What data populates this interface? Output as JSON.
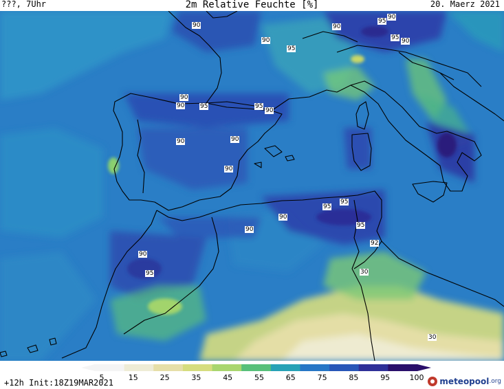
{
  "header": {
    "left": "???, 7Uhr",
    "title": "2m Relative Feuchte [%]",
    "date": "20. Maerz 2021"
  },
  "map_labels": [
    "90",
    "95",
    "90",
    "90",
    "95",
    "95",
    "90",
    "90",
    "95",
    "90",
    "95",
    "90",
    "90",
    "90",
    "90",
    "90",
    "95",
    "95",
    "90",
    "95",
    "92",
    "30",
    "30",
    "90",
    "95",
    "90"
  ],
  "colorbar": {
    "ticks": [
      "5",
      "15",
      "25",
      "35",
      "45",
      "55",
      "65",
      "75",
      "85",
      "95",
      "100"
    ],
    "colors": [
      "#f4f4f4",
      "#eeecd6",
      "#e6dfa8",
      "#d6dd7e",
      "#a9d66e",
      "#58c07a",
      "#27a2b6",
      "#2676c6",
      "#2856b8",
      "#2e2f98",
      "#2a0f6a"
    ]
  },
  "footer": {
    "run": "+12h  Init:18Z19MAR2021",
    "logo_text": "meteopool",
    "logo_suffix": ".org"
  }
}
